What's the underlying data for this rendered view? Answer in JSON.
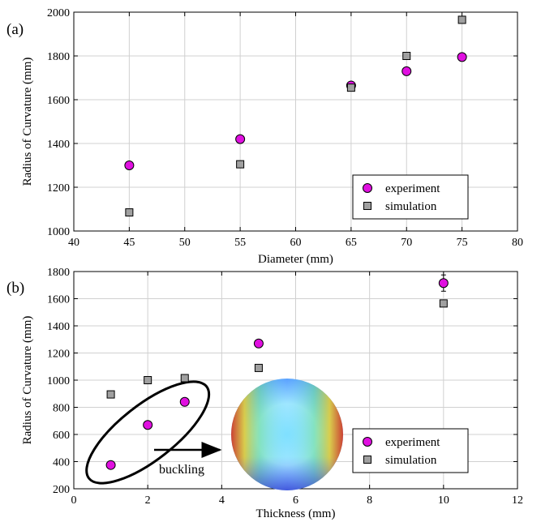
{
  "chart_data": [
    {
      "type": "scatter",
      "panel_label": "(a)",
      "xlabel": "Diameter (mm)",
      "ylabel": "Radius of Curvature (mm)",
      "xlim": [
        40,
        80
      ],
      "ylim": [
        1000,
        2000
      ],
      "xticks": [
        40,
        45,
        50,
        55,
        60,
        65,
        70,
        75,
        80
      ],
      "yticks": [
        1000,
        1200,
        1400,
        1600,
        1800,
        2000
      ],
      "grid": true,
      "legend": "bottom-right",
      "series": [
        {
          "name": "experiment",
          "marker": "circle",
          "color": "#e010e0",
          "x": [
            45,
            55,
            65,
            70,
            75
          ],
          "y": [
            1300,
            1420,
            1665,
            1730,
            1795
          ],
          "err": [
            15,
            0,
            0,
            0,
            0
          ]
        },
        {
          "name": "simulation",
          "marker": "square",
          "color": "#a0a0a0",
          "x": [
            45,
            55,
            65,
            70,
            75
          ],
          "y": [
            1085,
            1305,
            1655,
            1800,
            1965
          ]
        }
      ]
    },
    {
      "type": "scatter",
      "panel_label": "(b)",
      "xlabel": "Thickness (mm)",
      "ylabel": "Radius of Curvature (mm)",
      "xlim": [
        0,
        12
      ],
      "ylim": [
        200,
        1800
      ],
      "xticks": [
        0,
        2,
        4,
        6,
        8,
        10,
        12
      ],
      "yticks": [
        200,
        400,
        600,
        800,
        1000,
        1200,
        1400,
        1600,
        1800
      ],
      "grid": true,
      "legend": "bottom-right",
      "annotation": "buckling",
      "series": [
        {
          "name": "experiment",
          "marker": "circle",
          "color": "#e010e0",
          "x": [
            1,
            2,
            3,
            5,
            10
          ],
          "y": [
            375,
            670,
            840,
            1270,
            1715
          ],
          "err": [
            0,
            0,
            0,
            0,
            60
          ]
        },
        {
          "name": "simulation",
          "marker": "square",
          "color": "#a0a0a0",
          "x": [
            1,
            2,
            3,
            5,
            10
          ],
          "y": [
            895,
            1000,
            1015,
            1090,
            1565
          ]
        }
      ]
    }
  ]
}
